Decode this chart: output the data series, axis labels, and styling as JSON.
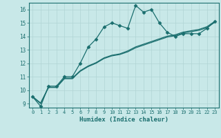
{
  "title": "",
  "xlabel": "Humidex (Indice chaleur)",
  "ylabel": "",
  "xlim": [
    -0.5,
    23.5
  ],
  "ylim": [
    8.7,
    16.5
  ],
  "xticks": [
    0,
    1,
    2,
    3,
    4,
    5,
    6,
    7,
    8,
    9,
    10,
    11,
    12,
    13,
    14,
    15,
    16,
    17,
    18,
    19,
    20,
    21,
    22,
    23
  ],
  "yticks": [
    9,
    10,
    11,
    12,
    13,
    14,
    15,
    16
  ],
  "background_color": "#c8e8e8",
  "grid_color": "#b0d4d4",
  "line_color": "#1a6e6e",
  "marker_x": [
    0,
    1,
    2,
    3,
    4,
    5,
    6,
    7,
    8,
    9,
    10,
    11,
    12,
    13,
    14,
    15,
    16,
    17,
    18,
    19,
    20,
    21,
    22,
    23
  ],
  "marker_y": [
    9.5,
    8.8,
    10.3,
    10.3,
    11.0,
    11.0,
    12.0,
    13.2,
    13.8,
    14.7,
    15.0,
    14.8,
    14.6,
    16.3,
    15.8,
    16.0,
    15.0,
    14.3,
    14.0,
    14.2,
    14.2,
    14.2,
    14.6,
    15.1
  ],
  "line1_y": [
    9.5,
    9.0,
    10.2,
    10.2,
    10.85,
    10.85,
    11.4,
    11.75,
    12.0,
    12.35,
    12.55,
    12.65,
    12.85,
    13.15,
    13.35,
    13.55,
    13.75,
    13.95,
    14.05,
    14.25,
    14.35,
    14.45,
    14.65,
    15.05
  ],
  "line2_y": [
    9.52,
    9.05,
    10.22,
    10.22,
    10.9,
    10.9,
    11.45,
    11.8,
    12.05,
    12.4,
    12.6,
    12.7,
    12.92,
    13.22,
    13.42,
    13.62,
    13.82,
    14.02,
    14.12,
    14.32,
    14.42,
    14.52,
    14.72,
    15.12
  ]
}
